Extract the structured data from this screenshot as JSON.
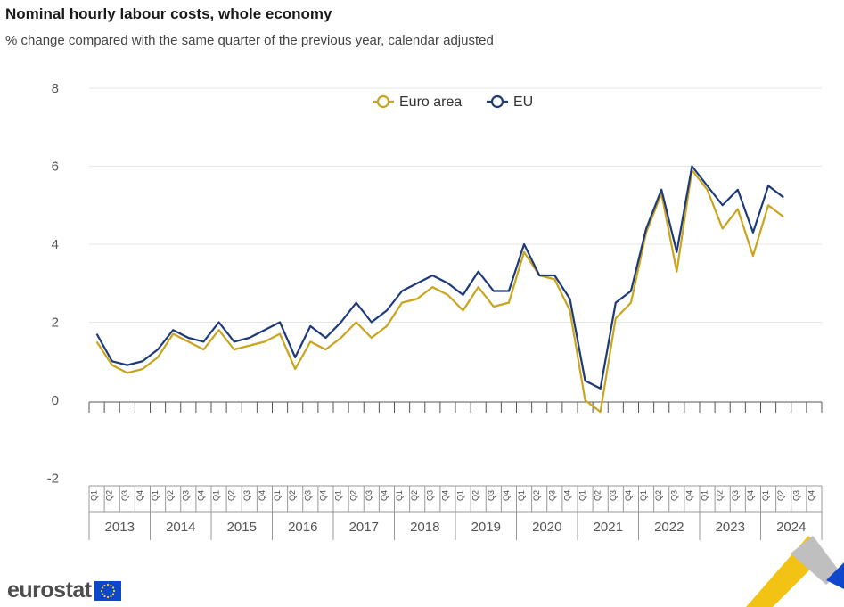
{
  "header": {
    "title": "Nominal hourly labour costs, whole economy",
    "subtitle": "% change compared with the same quarter of the previous year, calendar adjusted"
  },
  "brand": {
    "logo_text": "eurostat",
    "flag_icon": "eu-flag-icon"
  },
  "colors": {
    "euro_area": "#c9a41c",
    "eu": "#1d3a7a",
    "grid": "#e6e6e6",
    "deco_yellow": "#f2c314",
    "deco_blue": "#0e47cb",
    "deco_grey": "#bfbfbf"
  },
  "chart_data": {
    "type": "line",
    "quarters": [
      "Q1",
      "Q2",
      "Q3",
      "Q4"
    ],
    "years": [
      "2013",
      "2014",
      "2015",
      "2016",
      "2017",
      "2018",
      "2019",
      "2020",
      "2021",
      "2022",
      "2023",
      "2024"
    ],
    "ylim": [
      -2,
      8
    ],
    "yticks": [
      "-2",
      "0",
      "2",
      "4",
      "6",
      "8"
    ],
    "grid": true,
    "legend_position": "top-center",
    "series": [
      {
        "name": "Euro area",
        "values": [
          1.5,
          0.9,
          0.7,
          0.8,
          1.1,
          1.7,
          1.5,
          1.3,
          1.8,
          1.3,
          1.4,
          1.5,
          1.7,
          0.8,
          1.5,
          1.3,
          1.6,
          2.0,
          1.6,
          1.9,
          2.5,
          2.6,
          2.9,
          2.7,
          2.3,
          2.9,
          2.4,
          2.5,
          3.8,
          3.2,
          3.1,
          2.3,
          0.0,
          -0.3,
          2.1,
          2.5,
          4.3,
          5.3,
          3.3,
          5.9,
          5.4,
          4.4,
          4.9,
          3.7,
          5.0,
          4.7
        ]
      },
      {
        "name": "EU",
        "values": [
          1.7,
          1.0,
          0.9,
          1.0,
          1.3,
          1.8,
          1.6,
          1.5,
          2.0,
          1.5,
          1.6,
          1.8,
          2.0,
          1.1,
          1.9,
          1.6,
          2.0,
          2.5,
          2.0,
          2.3,
          2.8,
          3.0,
          3.2,
          3.0,
          2.7,
          3.3,
          2.8,
          2.8,
          4.0,
          3.2,
          3.2,
          2.6,
          0.5,
          0.3,
          2.5,
          2.8,
          4.4,
          5.4,
          3.8,
          6.0,
          5.5,
          5.0,
          5.4,
          4.3,
          5.5,
          5.2
        ]
      }
    ]
  }
}
